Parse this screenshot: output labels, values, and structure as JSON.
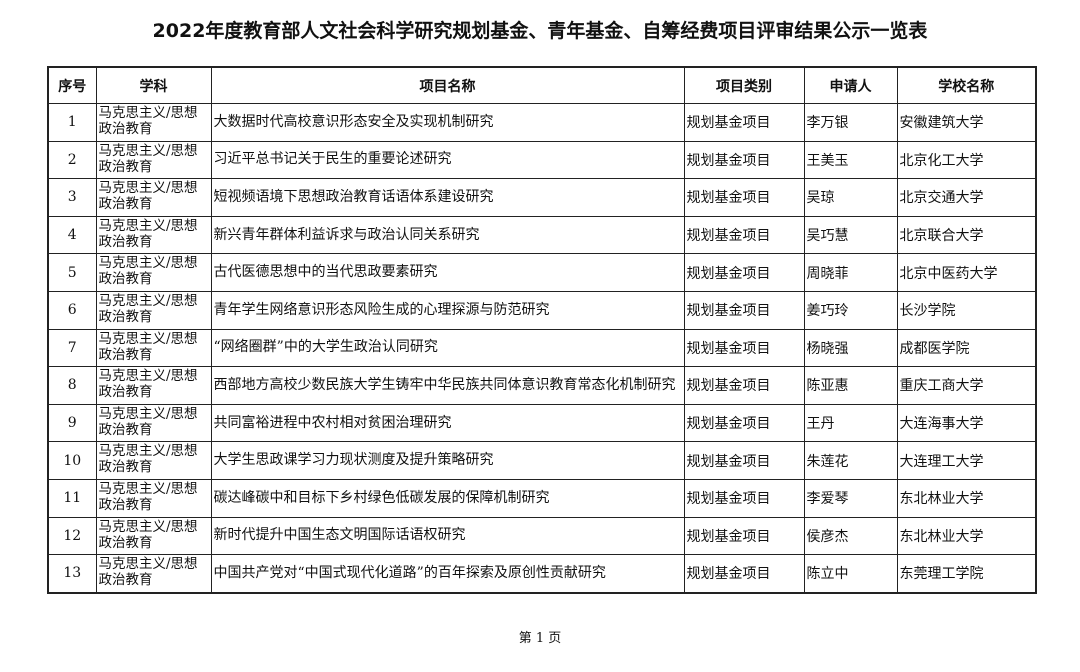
{
  "title": "2022年度教育部人文社会科学研究规划基金、青年基金、自筹经费项目评审结果公示一览表",
  "columns": [
    "序号",
    "学科",
    "项目名称",
    "项目类别",
    "申请人",
    "学校名称"
  ],
  "rows": [
    {
      "no": "1",
      "subject": "马克思主义/思想政治教育",
      "project": "大数据时代高校意识形态安全及实现机制研究",
      "type": "规划基金项目",
      "applicant": "李万银",
      "school": "安徽建筑大学"
    },
    {
      "no": "2",
      "subject": "马克思主义/思想政治教育",
      "project": "习近平总书记关于民生的重要论述研究",
      "type": "规划基金项目",
      "applicant": "王美玉",
      "school": "北京化工大学"
    },
    {
      "no": "3",
      "subject": "马克思主义/思想政治教育",
      "project": "短视频语境下思想政治教育话语体系建设研究",
      "type": "规划基金项目",
      "applicant": "吴琼",
      "school": "北京交通大学"
    },
    {
      "no": "4",
      "subject": "马克思主义/思想政治教育",
      "project": "新兴青年群体利益诉求与政治认同关系研究",
      "type": "规划基金项目",
      "applicant": "吴巧慧",
      "school": "北京联合大学"
    },
    {
      "no": "5",
      "subject": "马克思主义/思想政治教育",
      "project": "古代医德思想中的当代思政要素研究",
      "type": "规划基金项目",
      "applicant": "周晓菲",
      "school": "北京中医药大学"
    },
    {
      "no": "6",
      "subject": "马克思主义/思想政治教育",
      "project": "青年学生网络意识形态风险生成的心理探源与防范研究",
      "type": "规划基金项目",
      "applicant": "姜巧玲",
      "school": "长沙学院"
    },
    {
      "no": "7",
      "subject": "马克思主义/思想政治教育",
      "project": "“网络圈群”中的大学生政治认同研究",
      "type": "规划基金项目",
      "applicant": "杨晓强",
      "school": "成都医学院"
    },
    {
      "no": "8",
      "subject": "马克思主义/思想政治教育",
      "project": "西部地方高校少数民族大学生铸牢中华民族共同体意识教育常态化机制研究",
      "type": "规划基金项目",
      "applicant": "陈亚惠",
      "school": "重庆工商大学"
    },
    {
      "no": "9",
      "subject": "马克思主义/思想政治教育",
      "project": "共同富裕进程中农村相对贫困治理研究",
      "type": "规划基金项目",
      "applicant": "王丹",
      "school": "大连海事大学"
    },
    {
      "no": "10",
      "subject": "马克思主义/思想政治教育",
      "project": "大学生思政课学习力现状测度及提升策略研究",
      "type": "规划基金项目",
      "applicant": "朱莲花",
      "school": "大连理工大学"
    },
    {
      "no": "11",
      "subject": "马克思主义/思想政治教育",
      "project": "碳达峰碳中和目标下乡村绿色低碳发展的保障机制研究",
      "type": "规划基金项目",
      "applicant": "李爱琴",
      "school": "东北林业大学"
    },
    {
      "no": "12",
      "subject": "马克思主义/思想政治教育",
      "project": "新时代提升中国生态文明国际话语权研究",
      "type": "规划基金项目",
      "applicant": "侯彦杰",
      "school": "东北林业大学"
    },
    {
      "no": "13",
      "subject": "马克思主义/思想政治教育",
      "project": "中国共产党对“中国式现代化道路”的百年探索及原创性贡献研究",
      "type": "规划基金项目",
      "applicant": "陈立中",
      "school": "东莞理工学院"
    }
  ],
  "footer": "第 1 页"
}
